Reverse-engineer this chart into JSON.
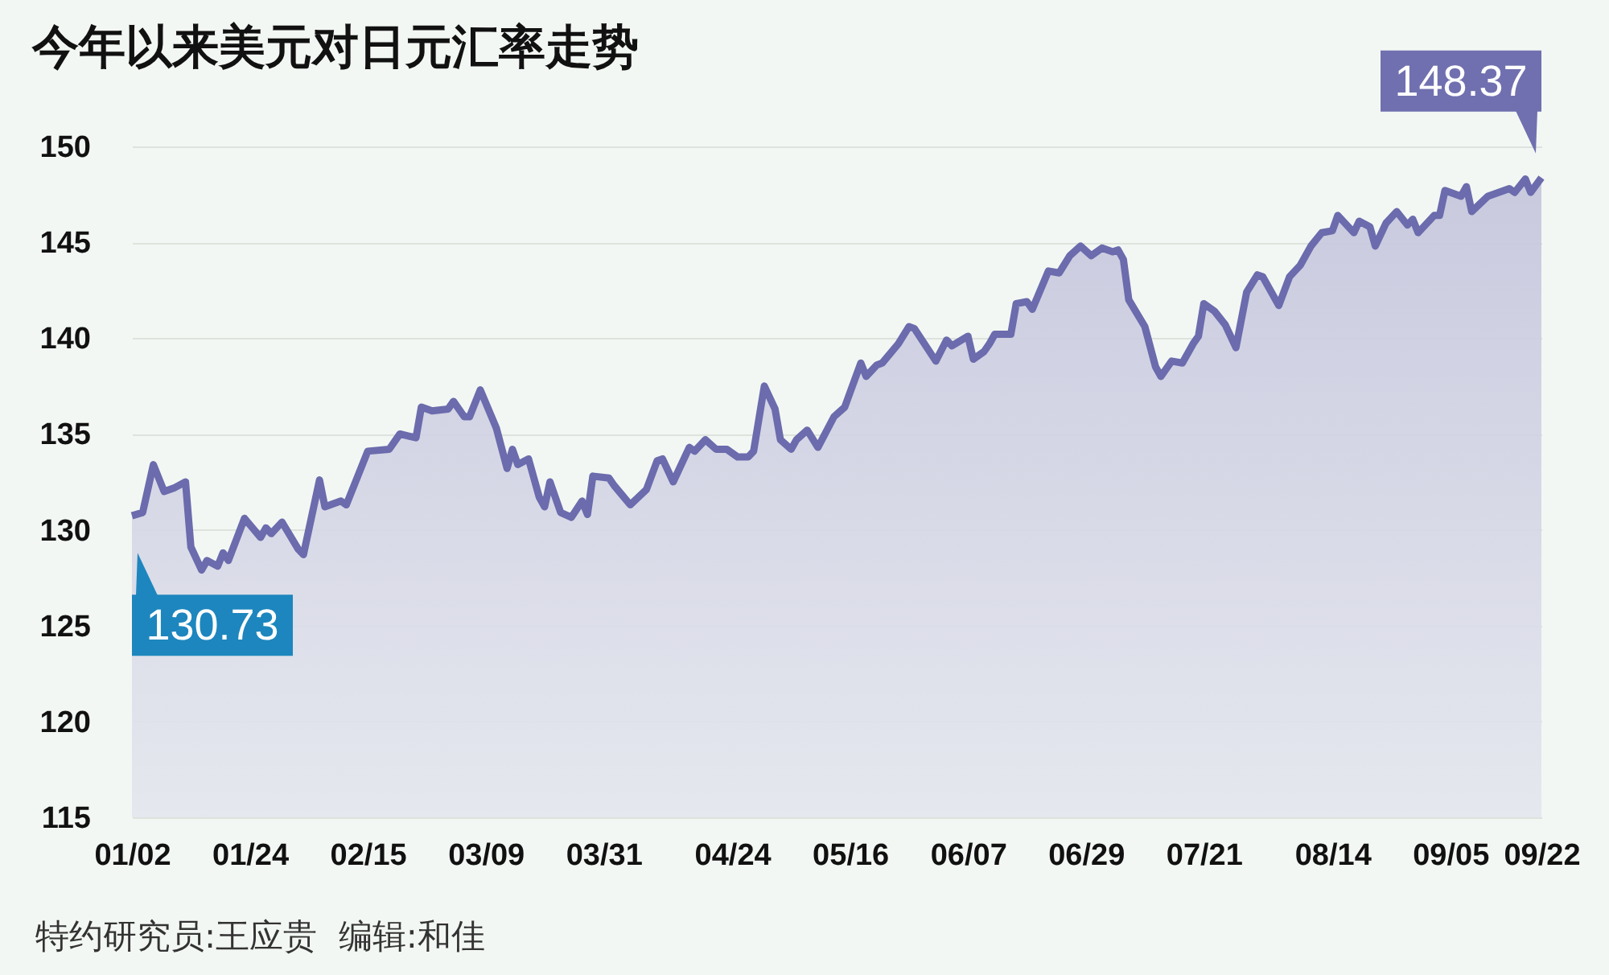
{
  "chart_data": {
    "type": "area",
    "title": "今年以来美元对日元汇率走势",
    "x": [
      "--01-02",
      "--01-04",
      "--01-06",
      "--01-08",
      "--01-10",
      "--01-12",
      "--01-13",
      "--01-15",
      "--01-16",
      "--01-18",
      "--01-19",
      "--01-20",
      "--01-23",
      "--01-26",
      "--01-27",
      "--01-28",
      "--01-30",
      "--02-02",
      "--02-03",
      "--02-06",
      "--02-07",
      "--02-10",
      "--02-11",
      "--02-15",
      "--02-19",
      "--02-21",
      "--02-24",
      "--02-25",
      "--02-27",
      "--03-02",
      "--03-03",
      "--03-05",
      "--03-06",
      "--03-08",
      "--03-11",
      "--03-13",
      "--03-14",
      "--03-15",
      "--03-17",
      "--03-19",
      "--03-20",
      "--03-21",
      "--03-23",
      "--03-25",
      "--03-27",
      "--03-28",
      "--03-29",
      "--04-01",
      "--04-02",
      "--04-05",
      "--04-08",
      "--04-10",
      "--04-11",
      "--04-13",
      "--04-16",
      "--04-17",
      "--04-19",
      "--04-21",
      "--04-23",
      "--04-25",
      "--04-27",
      "--04-28",
      "--04-30",
      "--05-02",
      "--05-03",
      "--05-05",
      "--05-06",
      "--05-08",
      "--05-10",
      "--05-13",
      "--05-15",
      "--05-18",
      "--05-19",
      "--05-21",
      "--05-22",
      "--05-25",
      "--05-27",
      "--05-28",
      "--06-01",
      "--06-03",
      "--06-04",
      "--06-07",
      "--06-08",
      "--06-10",
      "--06-11",
      "--06-12",
      "--06-15",
      "--06-16",
      "--06-18",
      "--06-19",
      "--06-22",
      "--06-24",
      "--06-26",
      "--06-28",
      "--06-30",
      "--07-02",
      "--07-04",
      "--07-05",
      "--07-06",
      "--07-07",
      "--07-10",
      "--07-12",
      "--07-13",
      "--07-15",
      "--07-17",
      "--07-19",
      "--07-20",
      "--07-21",
      "--07-23",
      "--07-25",
      "--07-27",
      "--07-29",
      "--07-31",
      "--08-01",
      "--08-04",
      "--08-06",
      "--08-08",
      "--08-10",
      "--08-12",
      "--08-14",
      "--08-15",
      "--08-18",
      "--08-19",
      "--08-21",
      "--08-22",
      "--08-24",
      "--08-26",
      "--08-28",
      "--08-29",
      "--08-30",
      "--09-02",
      "--09-03",
      "--09-04",
      "--09-07",
      "--09-08",
      "--09-09",
      "--09-12",
      "--09-14",
      "--09-16",
      "--09-17",
      "--09-19",
      "--09-20",
      "--09-22"
    ],
    "series": [
      {
        "color": "#6b6bad",
        "values": [
          130.73,
          130.9,
          133.4,
          132.0,
          132.2,
          132.5,
          129.1,
          127.9,
          128.4,
          128.1,
          128.8,
          128.4,
          130.6,
          129.6,
          130.1,
          129.8,
          130.4,
          129.0,
          128.7,
          132.6,
          131.2,
          131.5,
          131.3,
          134.1,
          134.2,
          135.0,
          134.8,
          136.4,
          136.2,
          136.3,
          136.7,
          135.9,
          135.9,
          137.3,
          135.3,
          133.2,
          134.2,
          133.4,
          133.7,
          131.7,
          131.2,
          132.5,
          130.9,
          130.65,
          131.5,
          130.8,
          132.8,
          132.7,
          132.3,
          131.3,
          132.1,
          133.6,
          133.7,
          132.5,
          134.3,
          134.1,
          134.7,
          134.2,
          134.2,
          133.8,
          133.8,
          134.1,
          137.5,
          136.3,
          134.7,
          134.2,
          134.7,
          135.2,
          134.3,
          135.9,
          136.4,
          138.7,
          138.0,
          138.6,
          138.7,
          139.7,
          140.6,
          140.5,
          138.8,
          139.9,
          139.6,
          140.1,
          138.9,
          139.3,
          139.7,
          140.2,
          140.2,
          141.8,
          141.9,
          141.5,
          143.5,
          143.4,
          144.3,
          144.8,
          144.3,
          144.7,
          144.5,
          144.6,
          144.1,
          142.0,
          140.6,
          138.5,
          138.0,
          138.8,
          138.7,
          139.7,
          140.1,
          141.8,
          141.4,
          140.7,
          139.5,
          142.4,
          143.3,
          143.2,
          141.7,
          143.2,
          143.8,
          144.8,
          145.5,
          145.6,
          146.4,
          145.5,
          146.1,
          145.8,
          144.8,
          146.0,
          146.6,
          145.9,
          146.2,
          145.5,
          146.4,
          146.4,
          147.7,
          147.4,
          147.9,
          146.6,
          147.4,
          147.6,
          147.8,
          147.6,
          148.3,
          147.6,
          148.37
        ]
      }
    ],
    "xlim": [
      "--01-02",
      "--09-22"
    ],
    "xticks": [
      {
        "value": "--01-02",
        "label": "01/02"
      },
      {
        "value": "--01-24",
        "label": "01/24"
      },
      {
        "value": "--02-15",
        "label": "02/15"
      },
      {
        "value": "--03-09",
        "label": "03/09"
      },
      {
        "value": "--03-31",
        "label": "03/31"
      },
      {
        "value": "--04-24",
        "label": "04/24"
      },
      {
        "value": "--05-16",
        "label": "05/16"
      },
      {
        "value": "--06-07",
        "label": "06/07"
      },
      {
        "value": "--06-29",
        "label": "06/29"
      },
      {
        "value": "--07-21",
        "label": "07/21"
      },
      {
        "value": "--08-14",
        "label": "08/14"
      },
      {
        "value": "--09-05",
        "label": "09/05"
      },
      {
        "value": "--09-22",
        "label": "09/22"
      }
    ],
    "ylim": [
      115,
      150
    ],
    "yticks": [
      115,
      120,
      125,
      130,
      135,
      140,
      145,
      150
    ],
    "grid": "y",
    "line_style": "solid",
    "annotations": [
      {
        "text": "130.73",
        "x": "--01-02",
        "y": 130.73
      },
      {
        "text": "148.37",
        "x": "--09-22",
        "y": 148.37
      },
      "特约研究员:王应贵  编辑:和佳"
    ]
  }
}
